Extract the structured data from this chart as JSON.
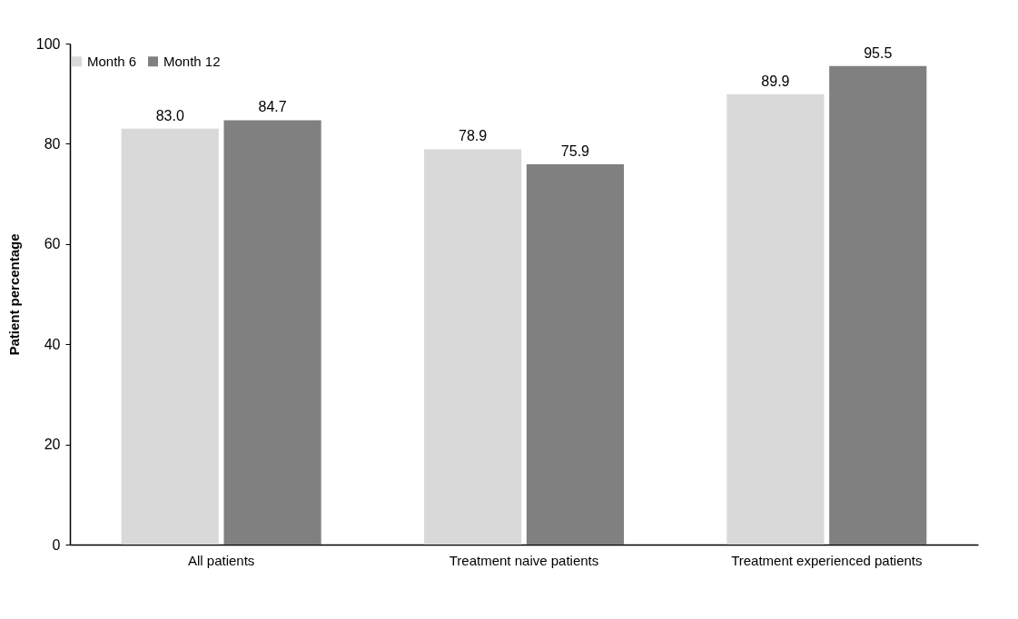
{
  "chart_data": {
    "type": "bar",
    "ylabel": "Patient percentage",
    "categories": [
      "All patients",
      "Treatment naive patients",
      "Treatment experienced patients"
    ],
    "series": [
      {
        "name": "Month 6",
        "color": "#d9d9d9",
        "values": [
          83.0,
          78.9,
          89.9
        ],
        "value_labels": [
          "83.0",
          "78.9",
          "89.9"
        ]
      },
      {
        "name": "Month 12",
        "color": "#808080",
        "values": [
          84.7,
          75.9,
          95.5
        ],
        "value_labels": [
          "84.7",
          "75.9",
          "95.5"
        ]
      }
    ],
    "ylim": [
      0,
      100
    ],
    "yticks": [
      0,
      20,
      40,
      60,
      80,
      100
    ],
    "grid": false,
    "legend": "top"
  }
}
